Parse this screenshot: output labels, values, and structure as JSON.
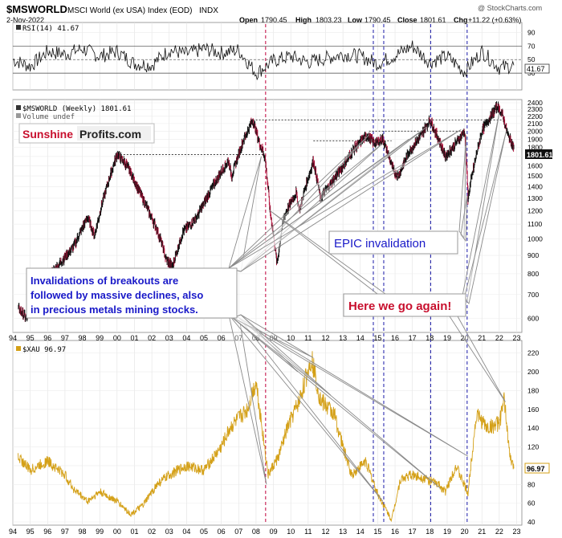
{
  "header": {
    "symbol": "$MSWORLD",
    "description": "MSCI World (ex USA) Index (EOD)",
    "exchange": "INDX",
    "watermark": "@ StockCharts.com",
    "date": "2-Nov-2022",
    "open_label": "Open",
    "open_value": "1790.45",
    "high_label": "High",
    "high_value": "1803.23",
    "low_label": "Low",
    "low_value": "1790.45",
    "close_label": "Close",
    "close_value": "1801.61",
    "chg_label": "Chg",
    "chg_value": "+11.22 (+0.63%)"
  },
  "branding": {
    "word1": "Sunshine",
    "word2": "Profits.com",
    "color1": "#c8102e",
    "color2": "#222222"
  },
  "annotations": {
    "epic": "EPIC invalidation",
    "invalidations_line1": "Invalidations of breakouts are",
    "invalidations_line2": "followed by massive declines, also",
    "invalidations_line3": "in precious metals mining stocks.",
    "here": "Here we go again!"
  },
  "colors": {
    "price_bar": "#111111",
    "down_bar": "#b0103a",
    "xau_line": "#d4a017",
    "rsi_line": "#111111",
    "red_marker": "#c0003c",
    "blue_marker": "#1a1aa8",
    "callout_text_blue": "#1919c8",
    "callout_text_red": "#c8102e"
  },
  "chart_data": [
    {
      "type": "line",
      "name": "rsi_panel",
      "legend": "RSI(14) 41.67",
      "last_value_label": "41.67",
      "ylim": [
        10,
        100
      ],
      "ticks": [
        90,
        70,
        50,
        30
      ],
      "tick_labels": [
        "90",
        "70",
        "50",
        "30"
      ],
      "reference_lines": [
        70,
        50,
        30
      ],
      "x": [
        1994,
        1995,
        1996,
        1997,
        1998,
        1999,
        2000,
        2001,
        2002,
        2003,
        2004,
        2005,
        2006,
        2007,
        2008,
        2009,
        2010,
        2011,
        2012,
        2013,
        2014,
        2015,
        2016,
        2017,
        2018,
        2019,
        2020,
        2021,
        2022,
        2022.84
      ],
      "values": [
        50,
        40,
        62,
        58,
        66,
        55,
        62,
        44,
        42,
        64,
        58,
        66,
        60,
        64,
        30,
        48,
        55,
        46,
        52,
        58,
        55,
        44,
        56,
        70,
        46,
        55,
        32,
        62,
        38,
        41.67
      ]
    },
    {
      "type": "line",
      "name": "msworld_panel",
      "legend": "$MSWORLD (Weekly) 1801.61",
      "volume_label": "Volume undef",
      "last_value_label": "1801.61",
      "scale": "log",
      "ylim": [
        560,
        2400
      ],
      "ticks": [
        2400,
        2300,
        2200,
        2100,
        2000,
        1900,
        1800,
        1700,
        1600,
        1500,
        1400,
        1300,
        1200,
        1100,
        1000,
        900,
        800,
        700,
        600
      ],
      "tick_labels": [
        "2400",
        "2300",
        "2200",
        "2100",
        "2000",
        "1900",
        "1800",
        "1700",
        "1600",
        "1500",
        "1400",
        "1300",
        "1200",
        "1100",
        "1000",
        "900",
        "800",
        "700",
        "600"
      ],
      "x": [
        1994.3,
        1994.8,
        1995.2,
        1995.7,
        1996.5,
        1997.5,
        1998.3,
        1998.7,
        1999.5,
        2000.0,
        2000.5,
        2001.3,
        2001.8,
        2002.5,
        2002.8,
        2003.2,
        2003.8,
        2004.6,
        2005.5,
        2006.4,
        2006.6,
        2007.3,
        2007.8,
        2008.2,
        2008.5,
        2008.8,
        2009.2,
        2009.6,
        2010.3,
        2010.5,
        2011.3,
        2011.7,
        2012.4,
        2013.0,
        2013.7,
        2014.4,
        2014.8,
        2015.3,
        2015.9,
        2016.2,
        2016.8,
        2017.5,
        2018.0,
        2018.4,
        2018.9,
        2019.5,
        2020.0,
        2020.2,
        2020.6,
        2021.0,
        2021.5,
        2021.9,
        2022.2,
        2022.5,
        2022.84
      ],
      "values": [
        640,
        600,
        680,
        760,
        830,
        950,
        1150,
        1020,
        1450,
        1720,
        1620,
        1350,
        1200,
        1000,
        880,
        840,
        1050,
        1150,
        1400,
        1650,
        1500,
        1900,
        2150,
        1850,
        1700,
        1200,
        850,
        1150,
        1350,
        1200,
        1650,
        1300,
        1450,
        1600,
        1800,
        1950,
        1850,
        1900,
        1550,
        1500,
        1750,
        1950,
        2150,
        1950,
        1700,
        1850,
        2000,
        1300,
        1650,
        2000,
        2200,
        2350,
        2200,
        1950,
        1801.61
      ],
      "reference_levels": [
        {
          "x": [
            2000.0,
            2008.5
          ],
          "y": 1720
        },
        {
          "x": [
            2007.8,
            2022.3
          ],
          "y": 2150
        },
        {
          "x": [
            2011.3,
            2015.8
          ],
          "y": 1880
        },
        {
          "x": [
            2014.5,
            2020.0
          ],
          "y": 2000
        }
      ]
    },
    {
      "type": "line",
      "name": "xau_panel",
      "legend": "$XAU 96.97",
      "last_value_label": "96.97",
      "ylim": [
        40,
        230
      ],
      "ticks": [
        220,
        200,
        180,
        160,
        140,
        120,
        100,
        80,
        60,
        40
      ],
      "tick_labels": [
        "220",
        "200",
        "180",
        "160",
        "140",
        "120",
        "100",
        "80",
        "60",
        "40"
      ],
      "x": [
        1994.3,
        1995.0,
        1996.0,
        1997.0,
        1997.5,
        1998.3,
        1999.0,
        2000.0,
        2000.8,
        2001.5,
        2002.3,
        2003.0,
        2004.0,
        2005.0,
        2006.0,
        2006.5,
        2007.5,
        2008.0,
        2008.7,
        2009.3,
        2009.8,
        2010.5,
        2011.2,
        2011.7,
        2012.5,
        2013.0,
        2013.5,
        2014.3,
        2015.0,
        2015.8,
        2016.3,
        2016.9,
        2017.5,
        2018.5,
        2018.9,
        2019.5,
        2020.2,
        2020.5,
        2020.7,
        2021.3,
        2022.0,
        2022.3,
        2022.6,
        2022.84
      ],
      "values": [
        110,
        95,
        105,
        90,
        75,
        62,
        72,
        62,
        48,
        58,
        80,
        90,
        100,
        95,
        120,
        140,
        160,
        190,
        90,
        110,
        140,
        170,
        215,
        170,
        155,
        120,
        90,
        105,
        70,
        42,
        85,
        90,
        88,
        80,
        72,
        100,
        70,
        125,
        155,
        140,
        145,
        170,
        110,
        96.97
      ]
    }
  ],
  "x_axis": {
    "labels": [
      "94",
      "95",
      "96",
      "97",
      "98",
      "99",
      "00",
      "01",
      "02",
      "03",
      "04",
      "05",
      "06",
      "07",
      "08",
      "09",
      "10",
      "11",
      "12",
      "13",
      "14",
      "15",
      "16",
      "17",
      "18",
      "19",
      "20",
      "21",
      "22",
      "23"
    ],
    "years": [
      1994,
      1995,
      1996,
      1997,
      1998,
      1999,
      2000,
      2001,
      2002,
      2003,
      2004,
      2005,
      2006,
      2007,
      2008,
      2009,
      2010,
      2011,
      2012,
      2013,
      2014,
      2015,
      2016,
      2017,
      2018,
      2019,
      2020,
      2021,
      2022,
      2023
    ]
  },
  "markers": {
    "red_years": [
      2008.55
    ],
    "blue_years": [
      2014.75,
      2015.35,
      2018.05,
      2020.15
    ]
  }
}
